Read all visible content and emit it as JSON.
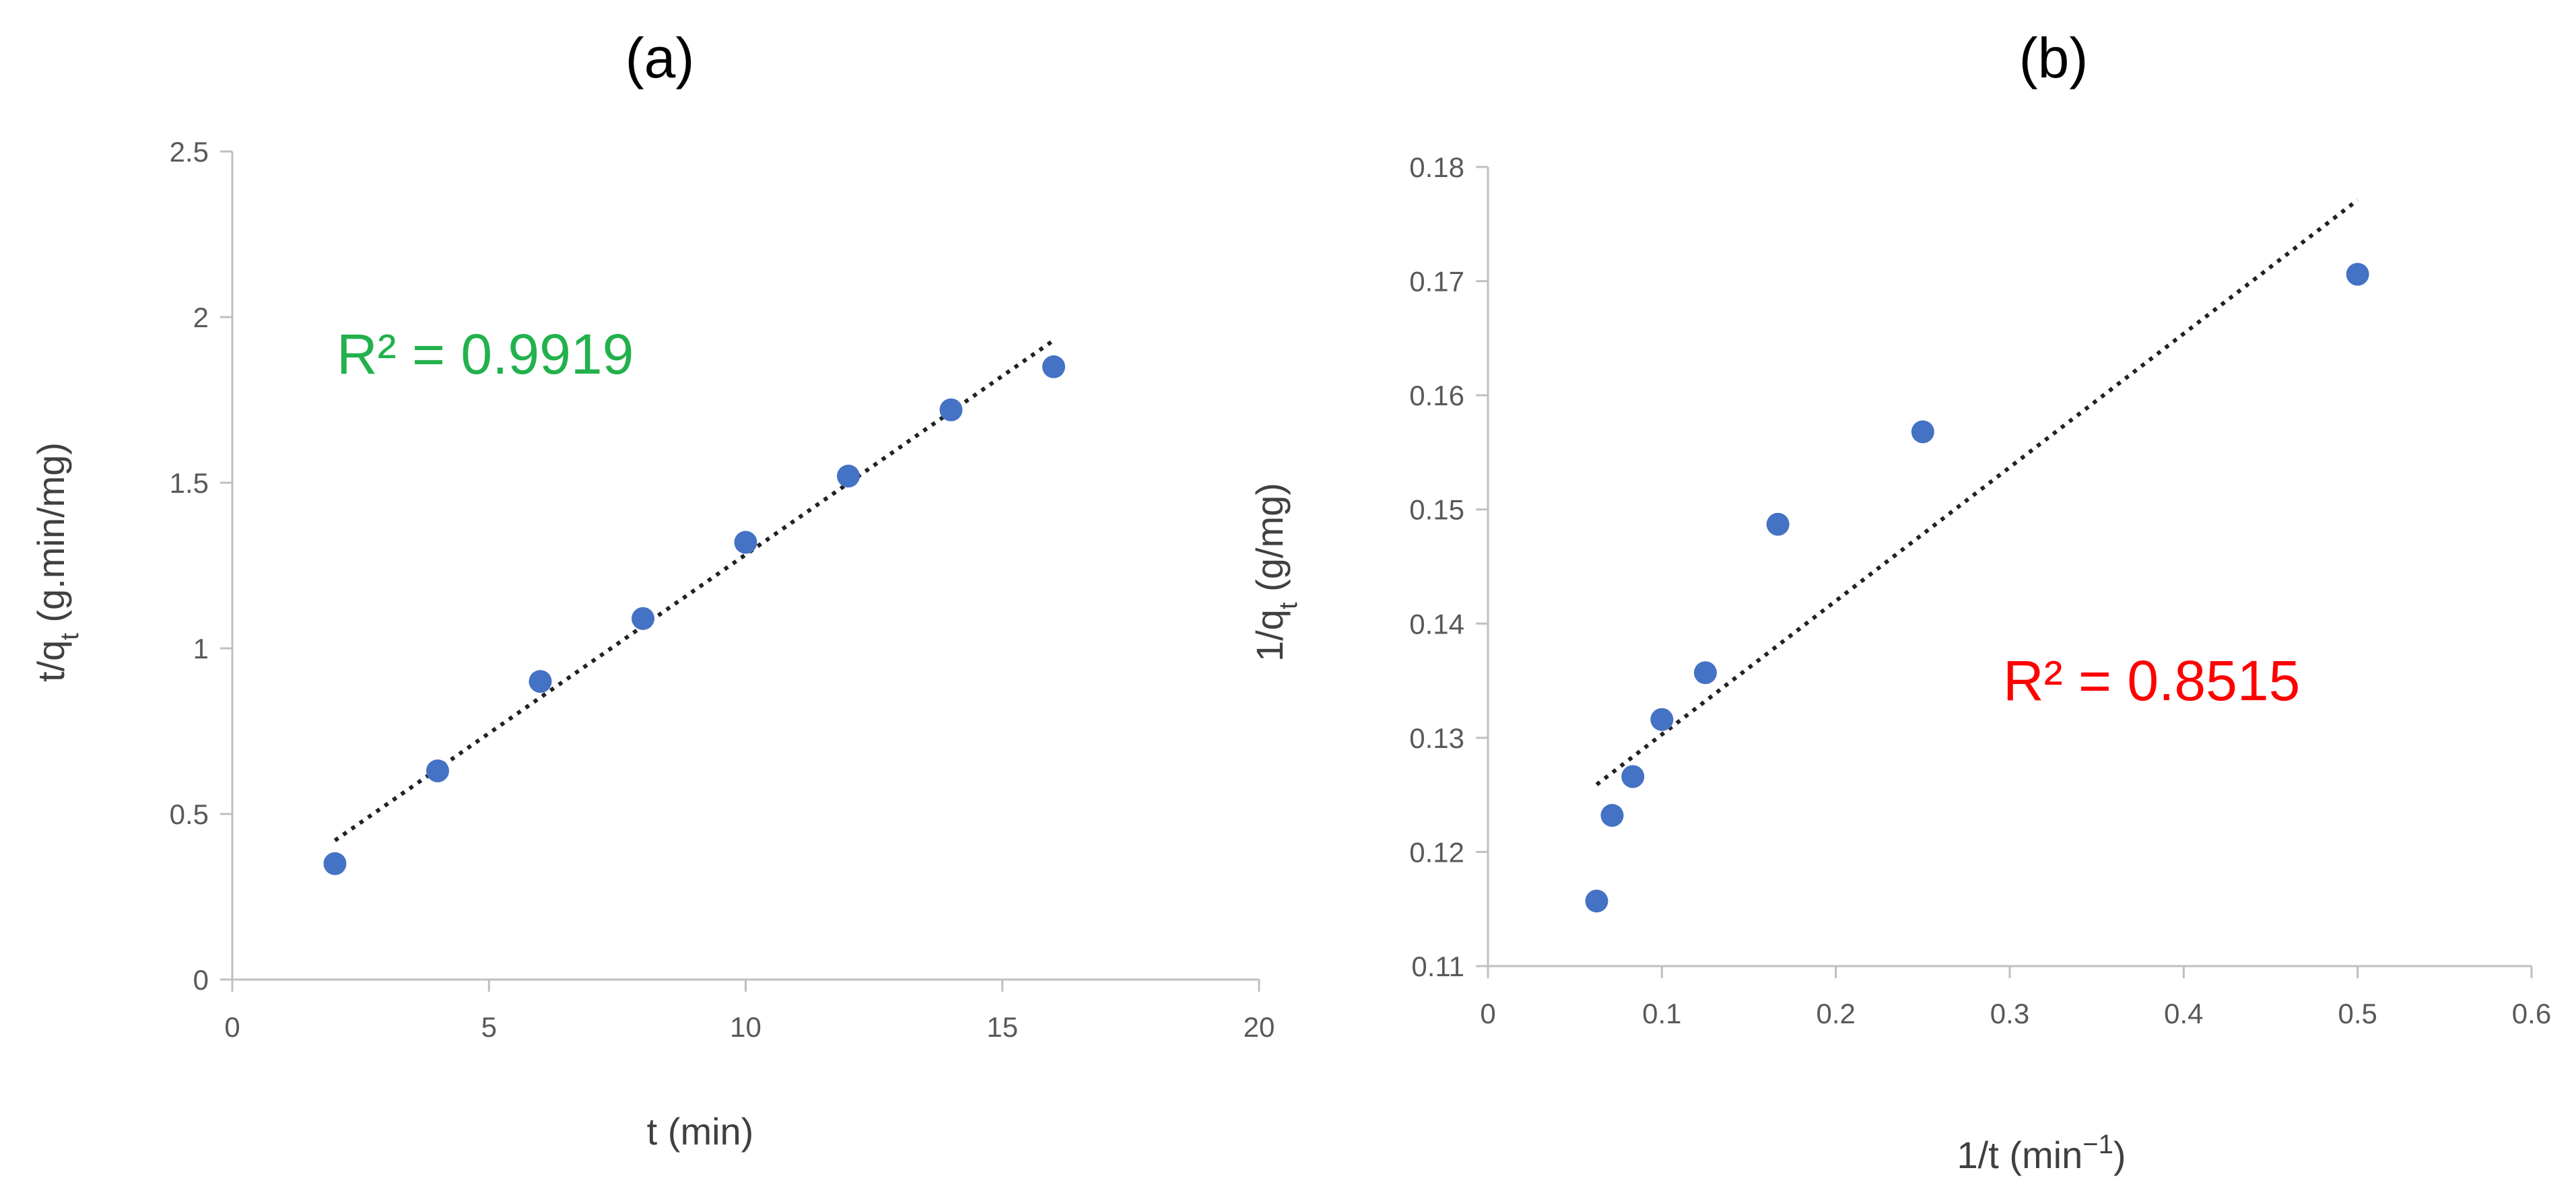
{
  "chart_data": [
    {
      "type": "scatter",
      "title": "(a)",
      "xlabel": "t (min)",
      "ylabel": {
        "main": "t/q",
        "sub": "t",
        "rest": " (g.min/mg)"
      },
      "xlim": [
        0,
        20
      ],
      "ylim": [
        0,
        2.5
      ],
      "xticks": [
        0,
        5,
        10,
        15,
        20
      ],
      "xtick_labels": [
        "0",
        "5",
        "10",
        "15",
        "20"
      ],
      "yticks": [
        0,
        0.5,
        1,
        1.5,
        2,
        2.5
      ],
      "ytick_labels": [
        "0",
        "0.5",
        "1",
        "1.5",
        "2",
        "2.5"
      ],
      "grid": false,
      "series": [
        {
          "name": "t/qt",
          "color": "#4472C4",
          "x": [
            2,
            4,
            6,
            8,
            10,
            12,
            14,
            16
          ],
          "y": [
            0.35,
            0.63,
            0.9,
            1.09,
            1.32,
            1.52,
            1.72,
            1.85
          ]
        }
      ],
      "trendline": {
        "x": [
          2,
          16
        ],
        "y": [
          0.42,
          1.93
        ]
      },
      "annotation": {
        "text": "R² = 0.9919",
        "color": "#22B14C"
      }
    },
    {
      "type": "scatter",
      "title": "(b)",
      "xlabel": {
        "main": "1/t (min",
        "sup": "−1",
        "rest": ")"
      },
      "ylabel": {
        "main": "1/q",
        "sub": "t",
        "rest": " (g/mg)"
      },
      "xlim": [
        0,
        0.6
      ],
      "ylim": [
        0.11,
        0.18
      ],
      "xticks": [
        0,
        0.1,
        0.2,
        0.3,
        0.4,
        0.5,
        0.6
      ],
      "xtick_labels": [
        "0",
        "0.1",
        "0.2",
        "0.3",
        "0.4",
        "0.5",
        "0.6"
      ],
      "yticks": [
        0.11,
        0.12,
        0.13,
        0.14,
        0.15,
        0.16,
        0.17,
        0.18
      ],
      "ytick_labels": [
        "0.11",
        "0.12",
        "0.13",
        "0.14",
        "0.15",
        "0.16",
        "0.17",
        "0.18"
      ],
      "grid": false,
      "series": [
        {
          "name": "1/qt",
          "color": "#4472C4",
          "x": [
            0.0625,
            0.0714,
            0.0833,
            0.1,
            0.125,
            0.1667,
            0.25,
            0.5
          ],
          "y": [
            0.1157,
            0.1232,
            0.1266,
            0.1316,
            0.1357,
            0.1487,
            0.1568,
            0.1706
          ]
        }
      ],
      "trendline": {
        "x": [
          0.0625,
          0.5
        ],
        "y": [
          0.1259,
          0.1771
        ]
      },
      "annotation": {
        "text": "R² = 0.8515",
        "color": "#FF0000"
      }
    }
  ]
}
